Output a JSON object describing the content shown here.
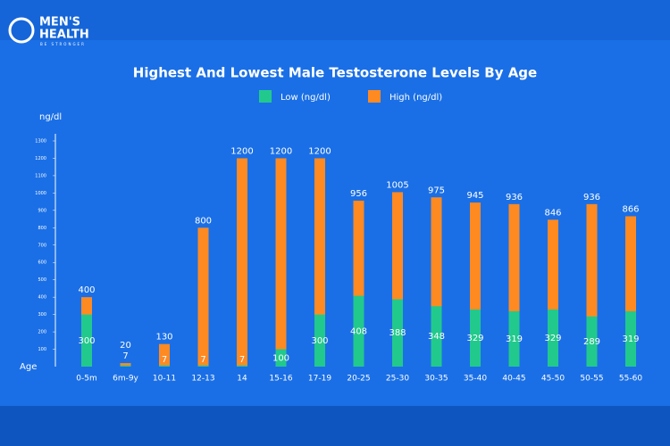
{
  "brand": {
    "line1": "MEN'S",
    "line2": "HEALTH",
    "tagline": "BE STRONGER"
  },
  "chart_data": {
    "type": "bar",
    "title": "Highest And Lowest Male Testosterone Levels By Age",
    "y_label": "ng/dl",
    "x_label": "Age",
    "categories": [
      "0-5m",
      "6m-9y",
      "10-11",
      "12-13",
      "14",
      "15-16",
      "17-19",
      "20-25",
      "25-30",
      "30-35",
      "35-40",
      "40-45",
      "45-50",
      "50-55",
      "55-60"
    ],
    "series": [
      {
        "name": "Low (ng/dl)",
        "color": "#22c98c",
        "values": [
          300,
          7,
          7,
          7,
          7,
          100,
          300,
          408,
          388,
          348,
          329,
          319,
          329,
          289,
          319
        ]
      },
      {
        "name": "High (ng/dl)",
        "color": "#ff8a22",
        "values": [
          400,
          20,
          130,
          800,
          1200,
          1200,
          1200,
          956,
          1005,
          975,
          945,
          936,
          846,
          936,
          866
        ]
      }
    ],
    "ylim": [
      0,
      1300
    ],
    "yticks": [
      100,
      200,
      300,
      400,
      500,
      600,
      700,
      800,
      900,
      1000,
      1100,
      1200,
      1300
    ]
  }
}
